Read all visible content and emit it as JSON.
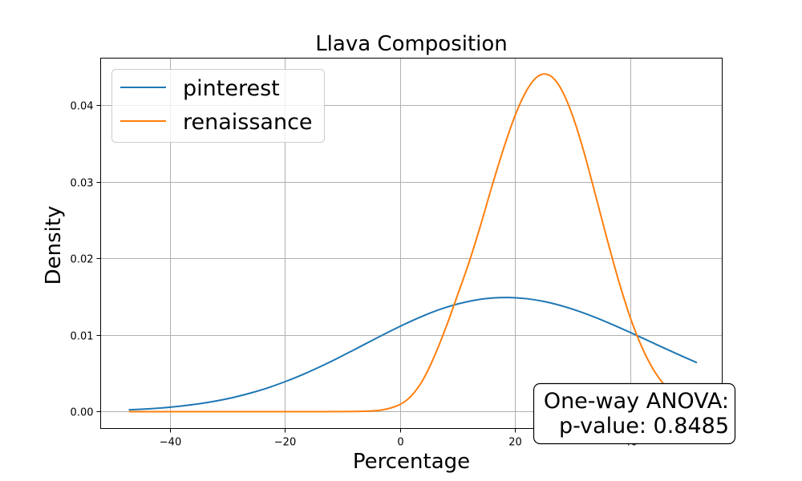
{
  "chart_data": {
    "type": "line",
    "title": "Llava Composition",
    "xlabel": "Percentage",
    "ylabel": "Density",
    "xlim": [
      -52,
      56
    ],
    "ylim": [
      -0.0022,
      0.0461
    ],
    "xticks": [
      -40,
      -20,
      0,
      20,
      40
    ],
    "xtick_labels": [
      "−40",
      "−20",
      "0",
      "20",
      "40"
    ],
    "yticks": [
      0.0,
      0.01,
      0.02,
      0.03,
      0.04
    ],
    "ytick_labels": [
      "0.00",
      "0.01",
      "0.02",
      "0.03",
      "0.04"
    ],
    "grid": true,
    "legend_position": "top-left",
    "series": [
      {
        "name": "pinterest",
        "color": "#1f77b4",
        "x": [
          -47,
          -44,
          -41,
          -38,
          -35,
          -32,
          -29,
          -26,
          -23,
          -20,
          -17,
          -14,
          -11,
          -8,
          -5,
          -2,
          1,
          4,
          7,
          10,
          13,
          16,
          19,
          22,
          25,
          28,
          31,
          34,
          37,
          40,
          43,
          46,
          49,
          51.5
        ],
        "y": [
          0.00024,
          0.00035,
          0.00051,
          0.00073,
          0.00101,
          0.00138,
          0.00184,
          0.00241,
          0.00309,
          0.00389,
          0.0048,
          0.00581,
          0.0069,
          0.00805,
          0.00922,
          0.01037,
          0.01147,
          0.01247,
          0.01334,
          0.01403,
          0.01453,
          0.01481,
          0.01488,
          0.01473,
          0.01437,
          0.01382,
          0.01311,
          0.01227,
          0.01133,
          0.01033,
          0.0093,
          0.00826,
          0.00724,
          0.00642
        ]
      },
      {
        "name": "renaissance",
        "color": "#ff7f0e",
        "x": [
          -47,
          -40,
          -30,
          -20,
          -15,
          -10,
          -6,
          -3,
          0,
          2,
          4,
          6,
          8,
          10,
          12,
          14,
          16,
          18,
          20,
          22,
          24,
          26,
          28,
          30,
          32,
          34,
          36,
          38,
          40,
          42,
          44,
          46,
          48,
          51.5
        ],
        "y": [
          0.0,
          0.0,
          0.0,
          0.0,
          0.0,
          1e-05,
          6e-05,
          0.00023,
          0.00092,
          0.00207,
          0.00414,
          0.00724,
          0.01099,
          0.01517,
          0.01945,
          0.02426,
          0.02941,
          0.03428,
          0.03858,
          0.04186,
          0.04374,
          0.04386,
          0.04209,
          0.0386,
          0.03379,
          0.0282,
          0.02249,
          0.01708,
          0.01233,
          0.00848,
          0.00554,
          0.00345,
          0.00204,
          0.00063
        ]
      }
    ],
    "annotation": {
      "line1": "One-way ANOVA:",
      "line2": "p-value: 0.8485"
    }
  }
}
